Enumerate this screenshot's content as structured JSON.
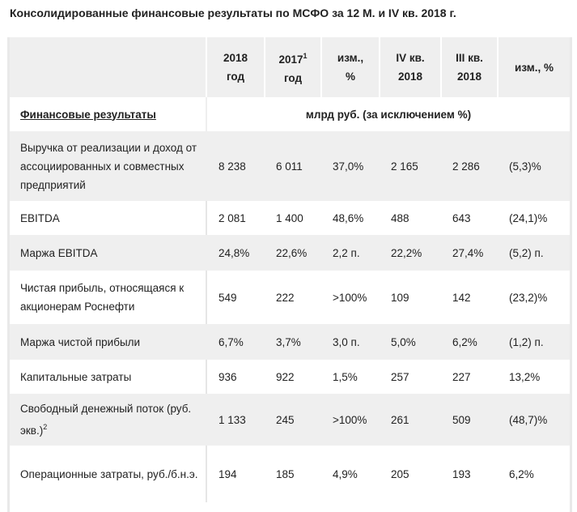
{
  "title": "Консолидированные финансовые результаты по МСФО за 12 М. и IV кв. 2018 г.",
  "header": {
    "col_2018_line1": "2018",
    "col_2018_line2": "год",
    "col_2017_line1": "2017",
    "col_2017_sup": "1",
    "col_2017_line2": "год",
    "col_chg_line1": "изм.,",
    "col_chg_line2": "%",
    "col_q4_line1": "IV кв.",
    "col_q4_line2": "2018",
    "col_q3_line1": "III кв.",
    "col_q3_line2": "2018",
    "col_qchg": "изм., %"
  },
  "subheader": {
    "section_label": "Финансовые результаты",
    "units": "млрд руб. (за исключением %)"
  },
  "rows": [
    {
      "label": "Выручка от реализации и доход от ассоциированных и совместных предприятий",
      "y2018": "8 238",
      "y2017": "6 011",
      "chg": "37,0%",
      "q4": "2 165",
      "q3": "2 286",
      "qchg": "(5,3)%"
    },
    {
      "label": "EBITDA",
      "y2018": "2 081",
      "y2017": "1 400",
      "chg": "48,6%",
      "q4": "488",
      "q3": "643",
      "qchg": "(24,1)%"
    },
    {
      "label": "Маржа EBITDA",
      "y2018": "24,8%",
      "y2017": "22,6%",
      "chg": "2,2 п.",
      "q4": "22,2%",
      "q3": "27,4%",
      "qchg": "(5,2) п."
    },
    {
      "label": "Чистая прибыль, относящаяся к акционерам Роснефти",
      "y2018": "549",
      "y2017": "222",
      "chg": ">100%",
      "q4": "109",
      "q3": "142",
      "qchg": "(23,2)%"
    },
    {
      "label": "Маржа чистой прибыли",
      "y2018": "6,7%",
      "y2017": "3,7%",
      "chg": "3,0 п.",
      "q4": "5,0%",
      "q3": "6,2%",
      "qchg": "(1,2) п."
    },
    {
      "label": "Капитальные затраты",
      "y2018": "936",
      "y2017": "922",
      "chg": "1,5%",
      "q4": "257",
      "q3": "227",
      "qchg": "13,2%"
    },
    {
      "label": "Свободный денежный поток (руб. экв.)",
      "label_sup": "2",
      "y2018": "1 133",
      "y2017": "245",
      "chg": ">100%",
      "q4": "261",
      "q3": "509",
      "qchg": "(48,7)%"
    },
    {
      "label": "Операционные затраты, руб./б.н.э.",
      "y2018": "194",
      "y2017": "185",
      "chg": "4,9%",
      "q4": "205",
      "q3": "193",
      "qchg": "6,2%"
    }
  ]
}
